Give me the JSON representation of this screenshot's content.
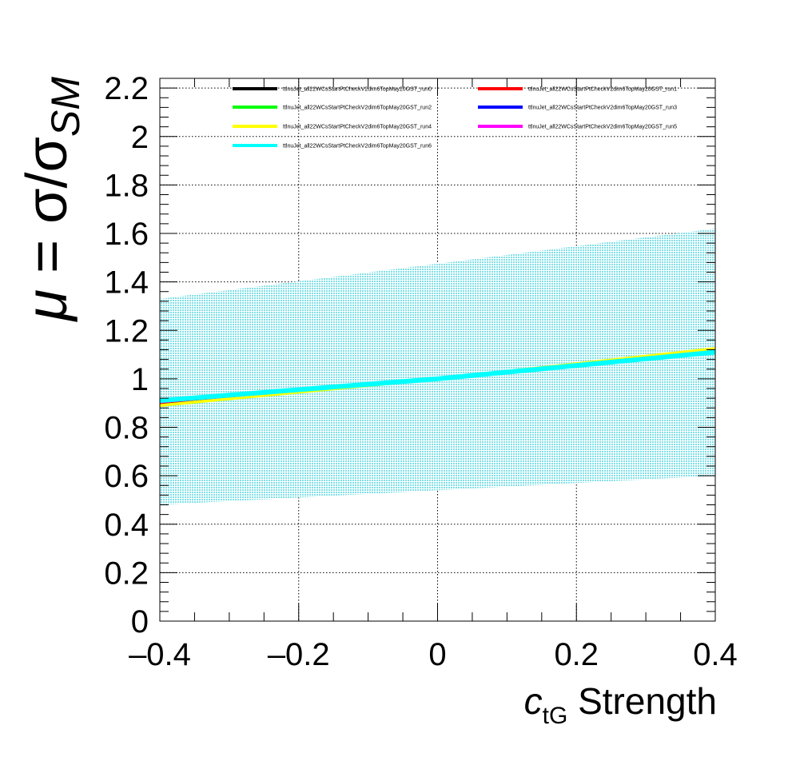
{
  "chart_data": {
    "type": "line",
    "xlabel_main": "c",
    "xlabel_sub": "tG",
    "xlabel_rest": " Strength",
    "ylabel_mu": "μ",
    "ylabel_eq": " = σ/σ",
    "ylabel_sub": "SM",
    "xlim": [
      -0.4,
      0.4
    ],
    "ylim": [
      0,
      2.24
    ],
    "x_ticks": [
      -0.4,
      -0.2,
      0,
      0.2,
      0.4
    ],
    "x_tick_labels": [
      "–0.4",
      "–0.2",
      "0",
      "0.2",
      "0.4"
    ],
    "y_ticks": [
      0,
      0.2,
      0.4,
      0.6,
      0.8,
      1,
      1.2,
      1.4,
      1.6,
      1.8,
      2,
      2.2
    ],
    "y_tick_labels": [
      "0",
      "0.2",
      "0.4",
      "0.6",
      "0.8",
      "1",
      "1.2",
      "1.4",
      "1.6",
      "1.8",
      "2",
      "2.2"
    ],
    "grid": true,
    "legend_position": "top",
    "band": {
      "color": "#7fdfe6",
      "x": [
        -0.4,
        0.4
      ],
      "upper": [
        1.33,
        1.62
      ],
      "lower": [
        0.48,
        0.6
      ]
    },
    "series": [
      {
        "name": "ttlnuJet_all22WCsStartPtCheckV2dim6TopMay20GST_run0",
        "color": "#000000",
        "x": [
          -0.4,
          0,
          0.4
        ],
        "y": [
          0.9,
          1.0,
          1.115
        ]
      },
      {
        "name": "ttlnuJet_all22WCsStartPtCheckV2dim6TopMay20GST_run1",
        "color": "#ff0000",
        "x": [
          -0.4,
          0,
          0.4
        ],
        "y": [
          0.9,
          1.0,
          1.115
        ]
      },
      {
        "name": "ttlnuJet_all22WCsStartPtCheckV2dim6TopMay20GST_run2",
        "color": "#00ff00",
        "x": [
          -0.4,
          0,
          0.4
        ],
        "y": [
          0.89,
          1.0,
          1.12
        ]
      },
      {
        "name": "ttlnuJet_all22WCsStartPtCheckV2dim6TopMay20GST_run3",
        "color": "#0000ff",
        "x": [
          -0.4,
          0,
          0.4
        ],
        "y": [
          0.905,
          1.0,
          1.11
        ]
      },
      {
        "name": "ttlnuJet_all22WCsStartPtCheckV2dim6TopMay20GST_run4",
        "color": "#ffff00",
        "x": [
          -0.4,
          0,
          0.4
        ],
        "y": [
          0.89,
          1.0,
          1.125
        ]
      },
      {
        "name": "ttlnuJet_all22WCsStartPtCheckV2dim6TopMay20GST_run5",
        "color": "#ff00ff",
        "x": [
          -0.4,
          0,
          0.4
        ],
        "y": [
          0.905,
          1.0,
          1.11
        ]
      },
      {
        "name": "ttlnuJet_all22WCsStartPtCheckV2dim6TopMay20GST_run6",
        "color": "#00ffff",
        "x": [
          -0.4,
          0,
          0.4
        ],
        "y": [
          0.91,
          1.0,
          1.11
        ]
      }
    ]
  }
}
